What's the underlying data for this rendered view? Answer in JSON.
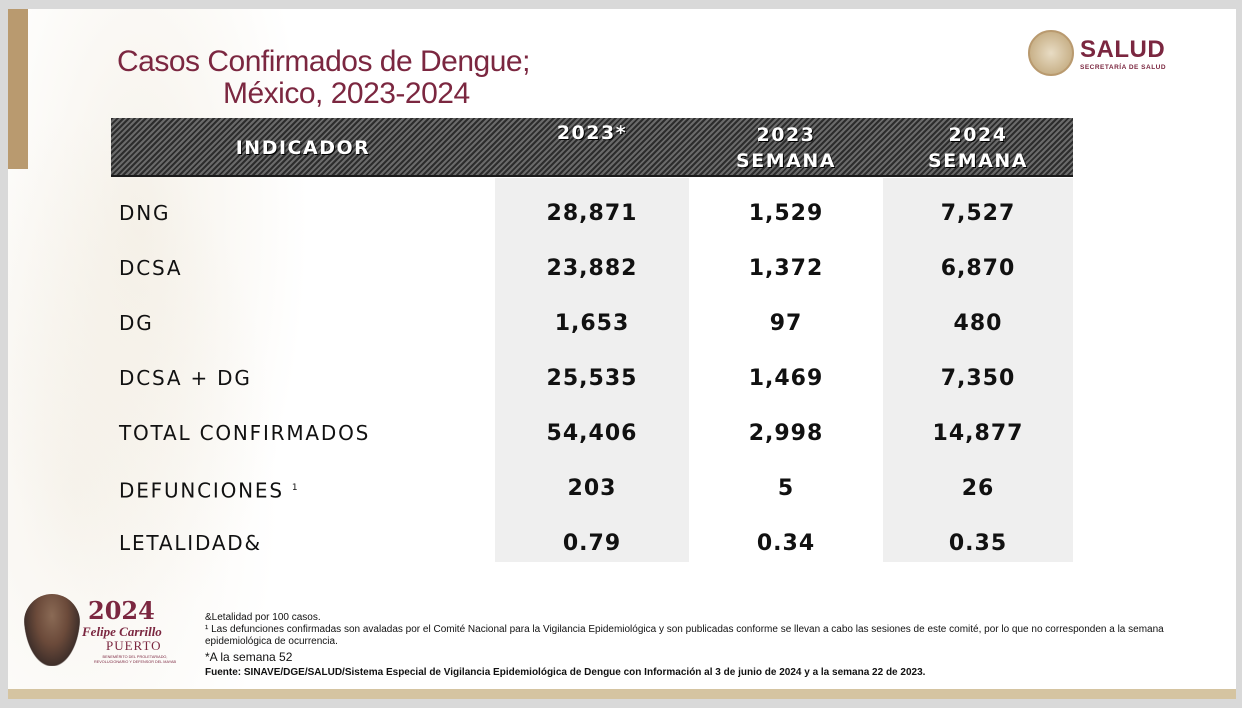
{
  "title": {
    "line1": "Casos Confirmados de Dengue;",
    "line2": "México, 2023-2024"
  },
  "logo": {
    "name": "SALUD",
    "subtitle": "SECRETARÍA DE SALUD",
    "icon": "mexican-seal-icon"
  },
  "table": {
    "headers": {
      "indicator": "INDICADOR",
      "col1": "2023*",
      "col2_line1": "2023",
      "col2_line2": "SEMANA",
      "col3_line1": "2024",
      "col3_line2": "SEMANA"
    },
    "rows": [
      {
        "label": "DNG",
        "v2023": "28,871",
        "v2023w": "1,529",
        "v2024w": "7,527"
      },
      {
        "label": "DCSA",
        "v2023": "23,882",
        "v2023w": "1,372",
        "v2024w": "6,870"
      },
      {
        "label": "DG",
        "v2023": "1,653",
        "v2023w": "97",
        "v2024w": "480"
      },
      {
        "label": "DCSA + DG",
        "v2023": "25,535",
        "v2023w": "1,469",
        "v2024w": "7,350"
      },
      {
        "label": "TOTAL CONFIRMADOS",
        "v2023": "54,406",
        "v2023w": "2,998",
        "v2024w": "14,877"
      },
      {
        "label": "DEFUNCIONES",
        "sup": "1",
        "v2023": "203",
        "v2023w": "5",
        "v2024w": "26"
      },
      {
        "label": "LETALIDAD&",
        "v2023": "0.79",
        "v2023w": "0.34",
        "v2024w": "0.35"
      }
    ]
  },
  "footer_logo": {
    "year": "2024",
    "name": "Felipe Carrillo",
    "name2": "PUERTO",
    "small": "BENEMÉRITO DEL PROLETARIADO, REVOLUCIONARIO Y DEFENSOR DEL MAYAB"
  },
  "notes": {
    "n1": "&Letalidad por 100 casos.",
    "n2": "¹ Las defunciones confirmadas son avaladas por el Comité Nacional para la Vigilancia Epidemiológica y son publicadas conforme se llevan a cabo las sesiones de este comité, por lo que no corresponden a la semana epidemiológica de ocurrencia.",
    "n3": "*A la semana 52",
    "n4": "Fuente: SINAVE/DGE/SALUD/Sistema Especial de Vigilancia Epidemiológica de Dengue con Información al 3 de junio de 2024 y a la semana 22 de 2023."
  }
}
